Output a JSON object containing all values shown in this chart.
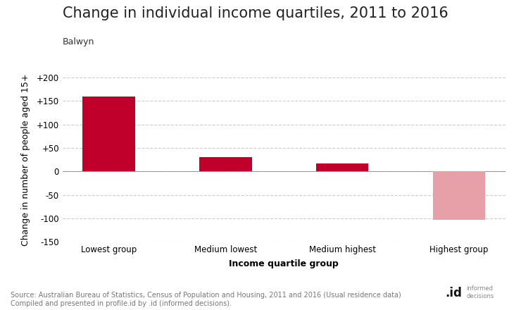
{
  "title": "Change in individual income quartiles, 2011 to 2016",
  "subtitle": "Balwyn",
  "categories": [
    "Lowest group",
    "Medium lowest",
    "Medium highest",
    "Highest group"
  ],
  "values": [
    160,
    30,
    17,
    -103
  ],
  "bar_colors": [
    "#c0002a",
    "#c0002a",
    "#c0002a",
    "#e8a0a8"
  ],
  "xlabel": "Income quartile group",
  "ylabel": "Change in number of people aged 15+",
  "ylim": [
    -150,
    200
  ],
  "yticks": [
    -150,
    -100,
    -50,
    0,
    50,
    100,
    150,
    200
  ],
  "ytick_labels": [
    "-150",
    "-100",
    "-50",
    "0",
    "+50",
    "+100",
    "+150",
    "+200"
  ],
  "source_text": "Source: Australian Bureau of Statistics, Census of Population and Housing, 2011 and 2016 (Usual residence data)\nCompiled and presented in profile.id by .id (informed decisions).",
  "background_color": "#ffffff",
  "grid_color": "#cccccc",
  "title_fontsize": 15,
  "subtitle_fontsize": 9,
  "axis_label_fontsize": 9,
  "tick_fontsize": 8.5,
  "source_fontsize": 7.0
}
